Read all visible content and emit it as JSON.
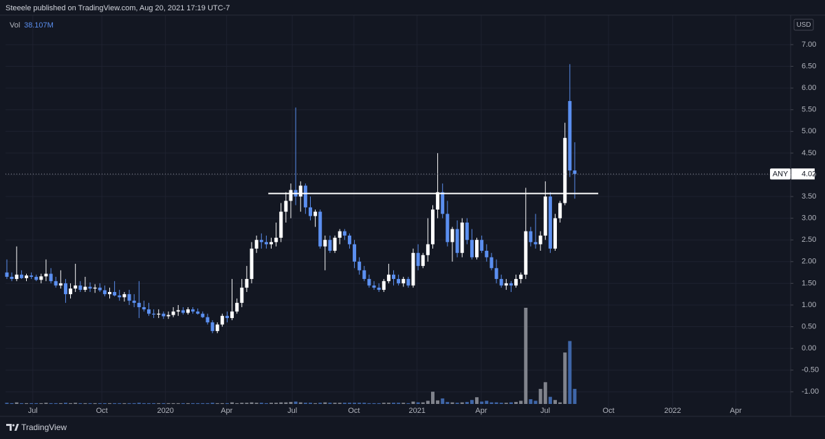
{
  "chart_data": {
    "type": "candlestick",
    "header": "Steeele published on TradingView.com, Aug 20, 2021 17:19 UTC-7",
    "brand": "TradingView",
    "symbol": "ANY",
    "currency": "USD",
    "up_color": "#ffffff",
    "down_color": "#5b8ff0",
    "volume_up_color": "#80838c",
    "volume_down_color": "#3f66a8",
    "grid": true,
    "open": [
      1.75,
      1.65,
      1.6,
      1.7,
      1.62,
      1.68,
      1.65,
      1.58,
      1.66,
      1.72,
      1.55,
      1.45,
      1.5,
      1.25,
      1.38,
      1.45,
      1.35,
      1.42,
      1.38,
      1.4,
      1.34,
      1.25,
      1.3,
      1.22,
      1.18,
      1.25,
      1.1,
      1.05,
      0.95,
      0.9,
      0.8,
      0.78,
      0.8,
      0.74,
      0.77,
      0.85,
      0.88,
      0.82,
      0.9,
      0.85,
      0.8,
      0.72,
      0.6,
      0.4,
      0.55,
      0.75,
      0.7,
      0.85,
      1.05,
      1.4,
      1.6,
      2.3,
      2.5,
      2.45,
      2.4,
      2.45,
      2.55,
      3.15,
      3.4,
      3.65,
      3.5,
      3.75,
      3.25,
      3.05,
      3.15,
      2.35,
      2.5,
      2.25,
      2.55,
      2.7,
      2.6,
      2.4,
      2.0,
      1.8,
      1.6,
      1.45,
      1.4,
      1.35,
      1.55,
      1.7,
      1.6,
      1.5,
      1.6,
      1.45,
      2.2,
      1.9,
      2.15,
      2.4,
      3.2,
      3.6,
      3.1,
      2.45,
      2.75,
      2.2,
      2.9,
      2.5,
      2.1,
      2.5,
      2.25,
      2.1,
      1.85,
      1.6,
      1.45,
      1.5,
      1.45,
      1.6,
      1.7,
      2.7,
      2.45,
      2.4,
      2.6,
      3.5,
      2.3,
      3.0,
      3.35,
      5.7,
      4.1
    ],
    "high": [
      2.05,
      1.75,
      2.35,
      1.8,
      1.72,
      1.75,
      1.7,
      1.72,
      2.05,
      1.85,
      1.65,
      1.8,
      1.6,
      1.5,
      1.95,
      1.55,
      1.65,
      1.52,
      1.48,
      1.5,
      1.45,
      1.4,
      1.55,
      1.35,
      1.3,
      1.35,
      1.25,
      1.55,
      1.1,
      1.05,
      0.9,
      0.9,
      0.85,
      0.85,
      0.95,
      1.0,
      0.95,
      0.95,
      0.95,
      0.92,
      0.85,
      0.8,
      0.65,
      0.6,
      0.8,
      0.85,
      1.6,
      1.15,
      1.6,
      1.9,
      2.45,
      2.6,
      2.65,
      2.6,
      2.55,
      2.9,
      3.35,
      3.6,
      3.8,
      5.55,
      3.85,
      3.8,
      3.5,
      3.2,
      3.2,
      2.6,
      2.6,
      2.6,
      2.75,
      2.75,
      2.65,
      2.5,
      2.1,
      1.9,
      1.7,
      1.55,
      1.5,
      1.6,
      1.95,
      1.8,
      1.7,
      1.65,
      1.65,
      2.3,
      2.4,
      2.2,
      3.0,
      3.3,
      4.5,
      3.8,
      3.4,
      2.8,
      2.95,
      3.0,
      3.0,
      2.75,
      2.55,
      2.6,
      2.4,
      2.2,
      2.05,
      1.7,
      1.6,
      1.55,
      1.7,
      1.75,
      3.7,
      2.8,
      3.1,
      2.7,
      3.85,
      3.6,
      3.1,
      3.4,
      5.2,
      6.55,
      4.75
    ],
    "low": [
      1.6,
      1.55,
      1.55,
      1.6,
      1.55,
      1.6,
      1.55,
      1.5,
      1.55,
      1.5,
      1.4,
      1.38,
      1.05,
      1.15,
      1.3,
      1.3,
      1.3,
      1.3,
      1.28,
      1.3,
      1.2,
      1.15,
      1.2,
      1.1,
      1.08,
      1.0,
      0.95,
      0.7,
      0.85,
      0.75,
      0.7,
      0.7,
      0.68,
      0.68,
      0.72,
      0.75,
      0.78,
      0.78,
      0.8,
      0.78,
      0.7,
      0.55,
      0.35,
      0.35,
      0.5,
      0.6,
      0.65,
      0.8,
      0.95,
      1.3,
      1.5,
      2.2,
      2.3,
      2.3,
      2.3,
      2.35,
      2.45,
      2.9,
      3.0,
      3.3,
      3.15,
      3.1,
      2.95,
      2.8,
      2.3,
      1.8,
      2.2,
      2.2,
      2.4,
      2.5,
      2.3,
      1.85,
      1.7,
      1.55,
      1.4,
      1.35,
      1.3,
      1.3,
      1.5,
      1.45,
      1.45,
      1.42,
      1.4,
      1.4,
      1.8,
      1.85,
      2.0,
      2.3,
      3.0,
      3.0,
      2.35,
      2.0,
      2.1,
      2.1,
      2.4,
      2.05,
      2.05,
      2.2,
      2.0,
      1.8,
      1.5,
      1.4,
      1.35,
      1.3,
      1.4,
      1.5,
      1.6,
      2.35,
      2.3,
      2.25,
      2.5,
      2.2,
      2.25,
      2.9,
      3.3,
      3.95,
      3.45
    ],
    "close": [
      1.65,
      1.6,
      1.7,
      1.62,
      1.68,
      1.65,
      1.58,
      1.66,
      1.72,
      1.55,
      1.45,
      1.5,
      1.25,
      1.38,
      1.45,
      1.35,
      1.42,
      1.38,
      1.4,
      1.34,
      1.25,
      1.3,
      1.22,
      1.18,
      1.25,
      1.1,
      1.05,
      0.95,
      0.9,
      0.8,
      0.78,
      0.8,
      0.74,
      0.77,
      0.85,
      0.88,
      0.82,
      0.9,
      0.85,
      0.8,
      0.72,
      0.6,
      0.4,
      0.55,
      0.75,
      0.7,
      0.85,
      1.05,
      1.4,
      1.6,
      2.3,
      2.5,
      2.45,
      2.4,
      2.45,
      2.55,
      3.15,
      3.4,
      3.65,
      3.5,
      3.75,
      3.25,
      3.05,
      3.15,
      2.35,
      2.5,
      2.25,
      2.55,
      2.7,
      2.6,
      2.4,
      2.0,
      1.8,
      1.6,
      1.45,
      1.4,
      1.35,
      1.55,
      1.7,
      1.6,
      1.5,
      1.6,
      1.45,
      2.2,
      1.9,
      2.15,
      2.4,
      3.2,
      3.6,
      3.1,
      2.45,
      2.75,
      2.2,
      2.9,
      2.5,
      2.1,
      2.5,
      2.25,
      2.1,
      1.85,
      1.6,
      1.45,
      1.5,
      1.45,
      1.6,
      1.7,
      2.7,
      2.45,
      2.4,
      2.6,
      3.5,
      2.3,
      3.0,
      3.35,
      4.85,
      4.1,
      4.02
    ],
    "volume": {
      "name": "Vol",
      "last_label": "38.107M",
      "values": [
        3,
        2,
        4,
        2,
        2,
        2,
        2,
        2,
        3,
        2,
        2,
        2,
        3,
        2,
        3,
        2,
        2,
        2,
        2,
        2,
        2,
        2,
        2,
        2,
        2,
        2,
        2,
        3,
        2,
        2,
        2,
        2,
        2,
        2,
        2,
        2,
        2,
        2,
        2,
        2,
        2,
        2,
        3,
        2,
        2,
        2,
        4,
        2,
        3,
        3,
        4,
        3,
        3,
        2,
        3,
        3,
        4,
        4,
        5,
        6,
        4,
        3,
        3,
        2,
        3,
        4,
        3,
        3,
        3,
        3,
        3,
        3,
        3,
        3,
        2,
        2,
        2,
        3,
        3,
        3,
        3,
        3,
        2,
        6,
        4,
        4,
        8,
        31,
        9,
        14,
        5,
        4,
        3,
        4,
        5,
        10,
        17,
        6,
        8,
        4,
        4,
        3,
        3,
        4,
        5,
        8,
        243,
        12,
        8,
        38,
        55,
        18,
        10,
        4,
        130,
        159,
        38.107
      ]
    },
    "hline": {
      "value": 3.57,
      "from": 53.4,
      "to": 120.8,
      "color": "#ffffff"
    },
    "xlim": [
      -0.28,
      160.1
    ],
    "xticks": [
      {
        "value": 5.3,
        "label": "Jul"
      },
      {
        "value": 19.4,
        "label": "Oct"
      },
      {
        "value": 32.4,
        "label": "2020"
      },
      {
        "value": 44.9,
        "label": "Apr"
      },
      {
        "value": 58.3,
        "label": "Jul"
      },
      {
        "value": 70.9,
        "label": "Oct"
      },
      {
        "value": 83.8,
        "label": "2021"
      },
      {
        "value": 96.9,
        "label": "Apr"
      },
      {
        "value": 109.97,
        "label": "Jul"
      },
      {
        "value": 122.9,
        "label": "Oct"
      },
      {
        "value": 136.0,
        "label": "2022"
      },
      {
        "value": 148.9,
        "label": "Apr"
      }
    ],
    "ylim": [
      -1.28,
      7.68
    ],
    "yticks": [
      {
        "value": -1,
        "label": "-1.00"
      },
      {
        "value": -0.5,
        "label": "-0.50"
      },
      {
        "value": 0,
        "label": "0.00"
      },
      {
        "value": 0.5,
        "label": "0.50"
      },
      {
        "value": 1,
        "label": "1.00"
      },
      {
        "value": 1.5,
        "label": "1.50"
      },
      {
        "value": 2,
        "label": "2.00"
      },
      {
        "value": 2.5,
        "label": "2.50"
      },
      {
        "value": 3,
        "label": "3.00"
      },
      {
        "value": 3.5,
        "label": "3.50"
      },
      {
        "value": 4,
        "label": "4.00"
      },
      {
        "value": 4.5,
        "label": "4.50"
      },
      {
        "value": 5,
        "label": "5.00"
      },
      {
        "value": 5.5,
        "label": "5.50"
      },
      {
        "value": 6,
        "label": "6.00"
      },
      {
        "value": 6.5,
        "label": "6.50"
      },
      {
        "value": 7,
        "label": "7.00"
      }
    ]
  }
}
